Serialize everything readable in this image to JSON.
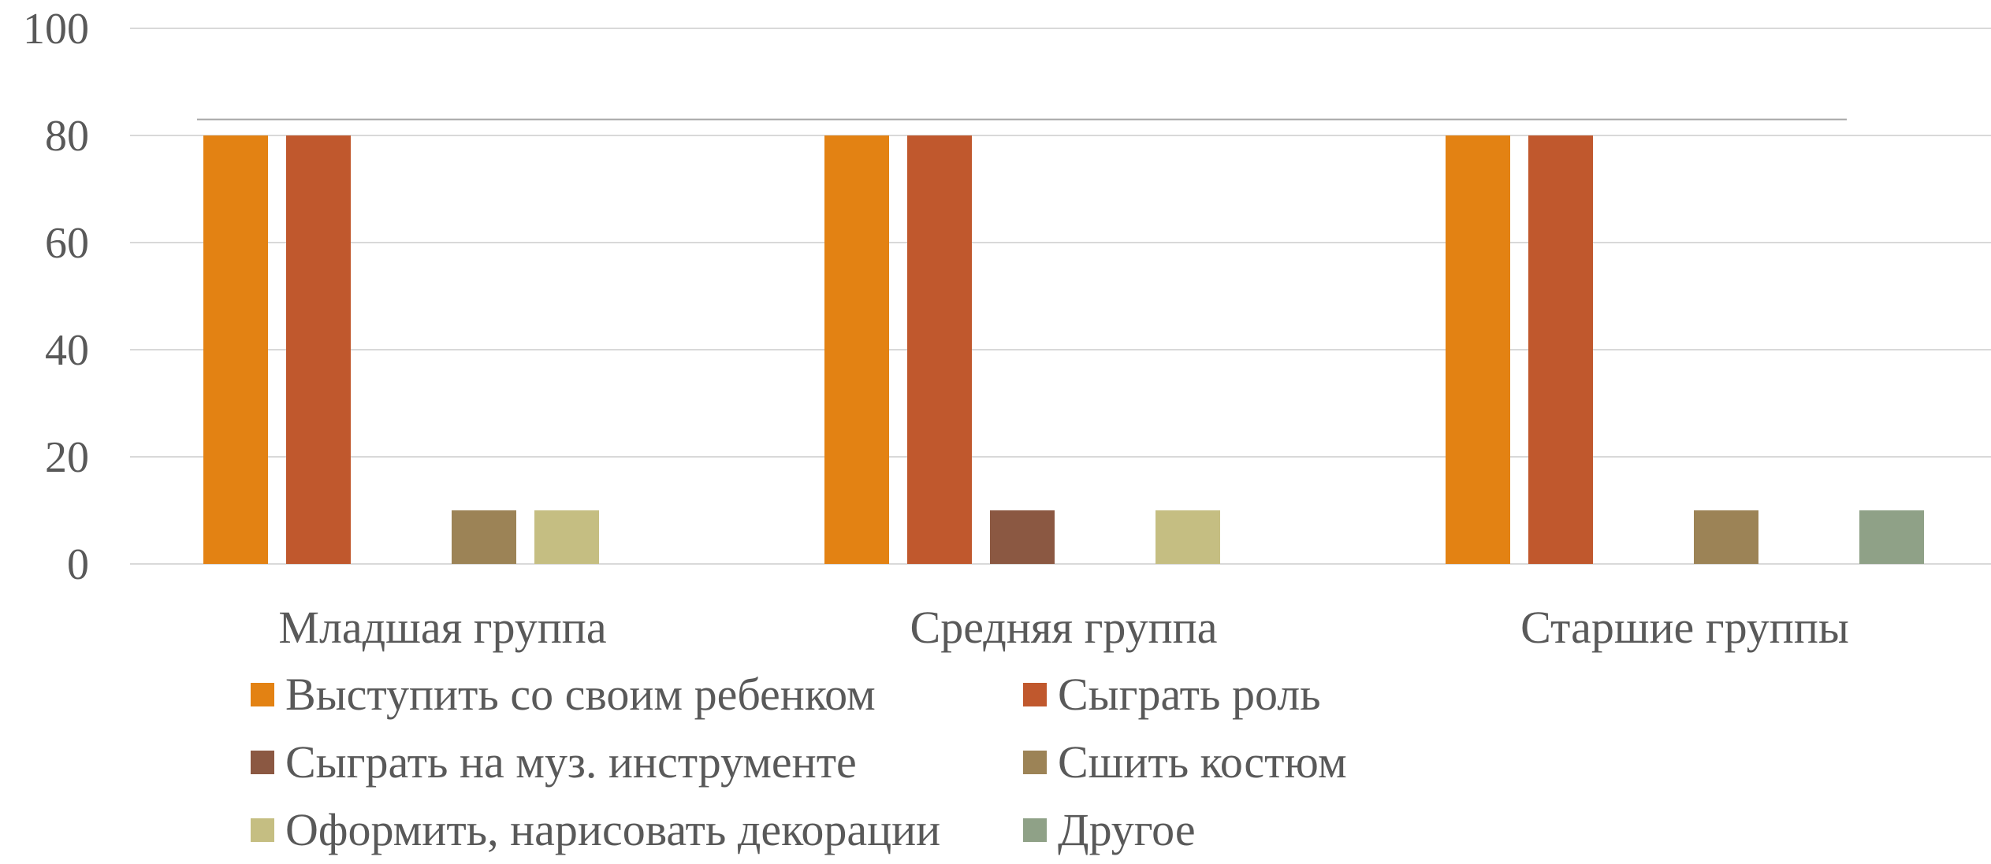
{
  "chart_data": {
    "type": "bar",
    "categories": [
      "Младшая группа",
      "Средняя группа",
      "Старшие группы"
    ],
    "series": [
      {
        "name": "Выступить со своим ребенком",
        "color": "#E38213",
        "values": [
          80,
          80,
          80
        ]
      },
      {
        "name": "Сыграть роль",
        "color": "#C0582D",
        "values": [
          80,
          80,
          80
        ]
      },
      {
        "name": "Сыграть на муз. инструменте",
        "color": "#8B5842",
        "values": [
          0,
          10,
          0
        ]
      },
      {
        "name": "Сшить костюм",
        "color": "#9C8356",
        "values": [
          10,
          0,
          10
        ]
      },
      {
        "name": "Оформить, нарисовать декорации",
        "color": "#C5BE82",
        "values": [
          10,
          10,
          0
        ]
      },
      {
        "name": "Другое",
        "color": "#8FA187",
        "values": [
          0,
          0,
          10
        ]
      }
    ],
    "y_ticks": [
      "0",
      "20",
      "40",
      "60",
      "80",
      "100"
    ],
    "ylim": [
      0,
      100
    ],
    "grid": true,
    "legend_position": "bottom",
    "reference_line_value": 83
  }
}
